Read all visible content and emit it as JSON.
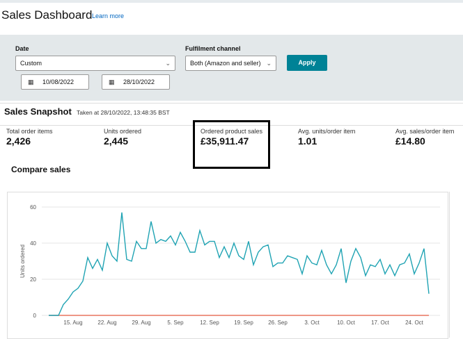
{
  "header": {
    "title": "Sales Dashboard",
    "link": "Learn more"
  },
  "filters": {
    "date_label": "Date",
    "date_option": "Custom",
    "start_date": "10/08/2022",
    "end_date": "28/10/2022",
    "channel_label": "Fulfilment channel",
    "channel_option": "Both (Amazon and seller)",
    "apply": "Apply"
  },
  "snapshot": {
    "title": "Sales Snapshot",
    "taken": "Taken at 28/10/2022, 13:48:35 BST",
    "metrics": [
      {
        "label": "Total order items",
        "value": "2,426"
      },
      {
        "label": "Units ordered",
        "value": "2,445"
      },
      {
        "label": "Ordered product sales",
        "value": "£35,911.47"
      },
      {
        "label": "Avg. units/order item",
        "value": "1.01"
      },
      {
        "label": "Avg. sales/order item",
        "value": "£14.80"
      }
    ]
  },
  "compare": {
    "title": "Compare sales"
  },
  "chart_data": {
    "type": "line",
    "ylabel": "Units ordered",
    "categories": [
      null,
      null,
      null,
      null,
      null,
      "15. Aug",
      null,
      null,
      null,
      null,
      null,
      null,
      "22. Aug",
      null,
      null,
      null,
      null,
      null,
      null,
      "29. Aug",
      null,
      null,
      null,
      null,
      null,
      null,
      "5. Sep",
      null,
      null,
      null,
      null,
      null,
      null,
      "12. Sep",
      null,
      null,
      null,
      null,
      null,
      null,
      "19. Sep",
      null,
      null,
      null,
      null,
      null,
      null,
      "26. Sep",
      null,
      null,
      null,
      null,
      null,
      null,
      "3. Oct",
      null,
      null,
      null,
      null,
      null,
      null,
      "10. Oct",
      null,
      null,
      null,
      null,
      null,
      null,
      "17. Oct",
      null,
      null,
      null,
      null,
      null,
      null,
      "24. Oct",
      null,
      null,
      null
    ],
    "series": [
      {
        "color": "#1fa3b3",
        "values": [
          0,
          0,
          0,
          6,
          9,
          13,
          15,
          19,
          32,
          26,
          31,
          25,
          40,
          33,
          30,
          57,
          31,
          30,
          41,
          37,
          37,
          52,
          40,
          42,
          41,
          44,
          39,
          46,
          41,
          35,
          35,
          47,
          39,
          41,
          41,
          32,
          38,
          32,
          40,
          33,
          31,
          41,
          28,
          35,
          38,
          39,
          27,
          29,
          29,
          33,
          32,
          31,
          23,
          33,
          29,
          28,
          36,
          28,
          23,
          28,
          37,
          18,
          30,
          37,
          32,
          22,
          28,
          27,
          31,
          23,
          28,
          22,
          28,
          29,
          34,
          23,
          29,
          37,
          12
        ]
      },
      {
        "color": "#e8735f",
        "values": [
          0,
          0,
          0,
          0,
          0,
          0,
          0,
          0,
          0,
          0,
          0,
          0,
          0,
          0,
          0,
          0,
          0,
          0,
          0,
          0,
          0,
          0,
          0,
          0,
          0,
          0,
          0,
          0,
          0,
          0,
          0,
          0,
          0,
          0,
          0,
          0,
          0,
          0,
          0,
          0,
          0,
          0,
          0,
          0,
          0,
          0,
          0,
          0,
          0,
          0,
          0,
          0,
          0,
          0,
          0,
          0,
          0,
          0,
          0,
          0,
          0,
          0,
          0,
          0,
          0,
          0,
          0,
          0,
          0,
          0,
          0,
          0,
          0,
          0,
          0,
          0,
          0,
          0,
          0
        ]
      }
    ],
    "ylim": [
      0,
      60
    ],
    "yticks": [
      0,
      20,
      40,
      60
    ],
    "grid": true
  }
}
